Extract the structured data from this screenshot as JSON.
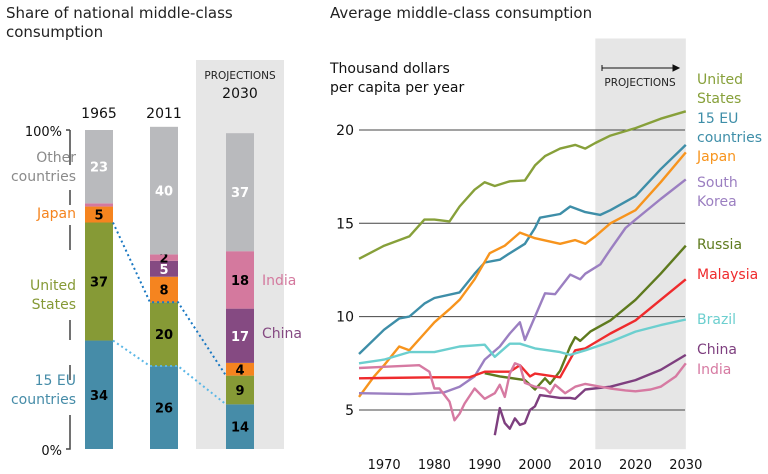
{
  "chart_data": [
    {
      "type": "bar",
      "stacked": true,
      "title": "Share of national middle-class consumption",
      "projection_label": "PROJECTIONS",
      "categories": [
        "1965",
        "2011",
        "2030"
      ],
      "projected_categories": [
        "2030"
      ],
      "yticks": [
        "100%",
        "0%"
      ],
      "ylim": [
        0,
        100
      ],
      "series": [
        {
          "name": "15 EU countries",
          "color": "#468ca8",
          "values": [
            34,
            26,
            14
          ],
          "label_color": "#000"
        },
        {
          "name": "United States",
          "color": "#869a36",
          "values": [
            37,
            20,
            9
          ],
          "label_color": "#000"
        },
        {
          "name": "Japan",
          "color": "#f5841f",
          "values": [
            5,
            8,
            4
          ],
          "label_color": "#000"
        },
        {
          "name": "China",
          "color": "#854a82",
          "values": [
            0,
            5,
            17
          ],
          "label_color": "#fff"
        },
        {
          "name": "India",
          "color": "#d4799e",
          "values": [
            1,
            2,
            18
          ],
          "label_color": "#000"
        },
        {
          "name": "Other countries",
          "color": "#b9babd",
          "values": [
            23,
            40,
            37
          ],
          "label_color": "#fff"
        }
      ],
      "data_labels": [
        [
          "34",
          "37",
          "5",
          "",
          "",
          "23"
        ],
        [
          "26",
          "20",
          "8",
          "5",
          "2",
          "40"
        ],
        [
          "14",
          "9",
          "4",
          "17",
          "18",
          "37"
        ]
      ]
    },
    {
      "type": "line",
      "title": "Average middle-class consumption",
      "ylabel": "Thousand dollars per capita per year",
      "projection_label": "PROJECTIONS",
      "projection_start": 2012,
      "xlim": [
        1965,
        2030
      ],
      "ylim": [
        2.9,
        24.9
      ],
      "xticks": [
        1970,
        1980,
        1990,
        2000,
        2010,
        2020,
        2030
      ],
      "yticks": [
        5,
        10,
        15,
        20
      ],
      "grid": "horizontal",
      "series": [
        {
          "name": "United States",
          "color": "#87a03a",
          "points": [
            [
              1965,
              13.1
            ],
            [
              1970,
              13.8
            ],
            [
              1975,
              14.3
            ],
            [
              1978,
              15.2
            ],
            [
              1980,
              15.2
            ],
            [
              1983,
              15.1
            ],
            [
              1985,
              15.9
            ],
            [
              1988,
              16.8
            ],
            [
              1990,
              17.2
            ],
            [
              1992,
              17.0
            ],
            [
              1995,
              17.25
            ],
            [
              1998,
              17.3
            ],
            [
              2000,
              18.1
            ],
            [
              2002,
              18.6
            ],
            [
              2005,
              19.0
            ],
            [
              2008,
              19.2
            ],
            [
              2010,
              19.0
            ],
            [
              2012,
              19.3
            ],
            [
              2015,
              19.7
            ],
            [
              2020,
              20.1
            ],
            [
              2025,
              20.6
            ],
            [
              2030,
              21.0
            ]
          ]
        },
        {
          "name": "15 EU countries",
          "color": "#3e8ea8",
          "points": [
            [
              1965,
              8.0
            ],
            [
              1970,
              9.3
            ],
            [
              1973,
              9.9
            ],
            [
              1975,
              10.0
            ],
            [
              1978,
              10.7
            ],
            [
              1980,
              11.0
            ],
            [
              1985,
              11.3
            ],
            [
              1988,
              12.3
            ],
            [
              1990,
              12.9
            ],
            [
              1993,
              13.05
            ],
            [
              1995,
              13.4
            ],
            [
              1998,
              13.9
            ],
            [
              2000,
              14.75
            ],
            [
              2001,
              15.3
            ],
            [
              2005,
              15.5
            ],
            [
              2007,
              15.9
            ],
            [
              2010,
              15.6
            ],
            [
              2013,
              15.45
            ],
            [
              2015,
              15.7
            ],
            [
              2020,
              16.45
            ],
            [
              2025,
              17.9
            ],
            [
              2030,
              19.2
            ]
          ]
        },
        {
          "name": "Japan",
          "color": "#f7941d",
          "points": [
            [
              1965,
              5.7
            ],
            [
              1968,
              6.8
            ],
            [
              1970,
              7.4
            ],
            [
              1973,
              8.4
            ],
            [
              1975,
              8.2
            ],
            [
              1978,
              9.1
            ],
            [
              1980,
              9.7
            ],
            [
              1983,
              10.4
            ],
            [
              1985,
              10.9
            ],
            [
              1988,
              12.0
            ],
            [
              1991,
              13.4
            ],
            [
              1994,
              13.8
            ],
            [
              1997,
              14.5
            ],
            [
              2000,
              14.2
            ],
            [
              2005,
              13.9
            ],
            [
              2008,
              14.1
            ],
            [
              2010,
              13.9
            ],
            [
              2012,
              14.3
            ],
            [
              2015,
              15.0
            ],
            [
              2020,
              15.7
            ],
            [
              2025,
              17.2
            ],
            [
              2030,
              18.8
            ]
          ]
        },
        {
          "name": "South Korea",
          "color": "#9b7fc1",
          "points": [
            [
              1965,
              5.9
            ],
            [
              1975,
              5.85
            ],
            [
              1982,
              5.95
            ],
            [
              1985,
              6.25
            ],
            [
              1988,
              6.8
            ],
            [
              1990,
              7.7
            ],
            [
              1993,
              8.4
            ],
            [
              1995,
              9.1
            ],
            [
              1997,
              9.7
            ],
            [
              1998,
              8.75
            ],
            [
              2000,
              10.0
            ],
            [
              2002,
              11.25
            ],
            [
              2004,
              11.2
            ],
            [
              2007,
              12.25
            ],
            [
              2009,
              12.0
            ],
            [
              2010,
              12.3
            ],
            [
              2013,
              12.8
            ],
            [
              2015,
              13.6
            ],
            [
              2018,
              14.75
            ],
            [
              2020,
              15.2
            ],
            [
              2025,
              16.3
            ],
            [
              2030,
              17.35
            ]
          ]
        },
        {
          "name": "Russia",
          "color": "#5e7a1e",
          "points": [
            [
              1990,
              6.97
            ],
            [
              1993,
              6.8
            ],
            [
              1998,
              6.6
            ],
            [
              2000,
              6.1
            ],
            [
              2002,
              6.7
            ],
            [
              2003,
              6.4
            ],
            [
              2005,
              7.1
            ],
            [
              2007,
              8.4
            ],
            [
              2008,
              8.9
            ],
            [
              2009,
              8.7
            ],
            [
              2011,
              9.2
            ],
            [
              2015,
              9.8
            ],
            [
              2020,
              10.9
            ],
            [
              2025,
              12.3
            ],
            [
              2030,
              13.8
            ]
          ]
        },
        {
          "name": "Malaysia",
          "color": "#ef2b2d",
          "points": [
            [
              1965,
              6.7
            ],
            [
              1980,
              6.75
            ],
            [
              1987,
              6.75
            ],
            [
              1990,
              7.05
            ],
            [
              1995,
              7.05
            ],
            [
              1997,
              7.4
            ],
            [
              1999,
              6.8
            ],
            [
              2000,
              6.95
            ],
            [
              2005,
              6.75
            ],
            [
              2008,
              8.2
            ],
            [
              2010,
              8.3
            ],
            [
              2015,
              9.1
            ],
            [
              2020,
              9.8
            ],
            [
              2025,
              10.9
            ],
            [
              2030,
              12.0
            ]
          ]
        },
        {
          "name": "Brazil",
          "color": "#6ccfcf",
          "points": [
            [
              1965,
              7.5
            ],
            [
              1970,
              7.7
            ],
            [
              1975,
              8.1
            ],
            [
              1980,
              8.1
            ],
            [
              1985,
              8.4
            ],
            [
              1990,
              8.5
            ],
            [
              1992,
              7.85
            ],
            [
              1995,
              8.55
            ],
            [
              1997,
              8.55
            ],
            [
              2000,
              8.3
            ],
            [
              2005,
              8.1
            ],
            [
              2007,
              7.95
            ],
            [
              2010,
              8.2
            ],
            [
              2015,
              8.65
            ],
            [
              2020,
              9.2
            ],
            [
              2025,
              9.55
            ],
            [
              2030,
              9.85
            ]
          ]
        },
        {
          "name": "China",
          "color": "#7e3f7f",
          "points": [
            [
              1992,
              3.65
            ],
            [
              1993,
              5.1
            ],
            [
              1994,
              4.3
            ],
            [
              1995,
              4.0
            ],
            [
              1996,
              4.55
            ],
            [
              1997,
              4.2
            ],
            [
              1998,
              4.3
            ],
            [
              1999,
              5.0
            ],
            [
              2000,
              5.2
            ],
            [
              2001,
              5.8
            ],
            [
              2005,
              5.65
            ],
            [
              2007,
              5.65
            ],
            [
              2008,
              5.6
            ],
            [
              2010,
              6.1
            ],
            [
              2015,
              6.25
            ],
            [
              2020,
              6.6
            ],
            [
              2025,
              7.15
            ],
            [
              2030,
              7.95
            ]
          ]
        },
        {
          "name": "India",
          "color": "#d67aa2",
          "points": [
            [
              1965,
              7.25
            ],
            [
              1977,
              7.4
            ],
            [
              1979,
              7.05
            ],
            [
              1980,
              6.15
            ],
            [
              1981,
              6.15
            ],
            [
              1983,
              5.45
            ],
            [
              1984,
              4.45
            ],
            [
              1985,
              4.8
            ],
            [
              1986,
              5.35
            ],
            [
              1988,
              6.15
            ],
            [
              1990,
              5.6
            ],
            [
              1992,
              5.9
            ],
            [
              1993,
              6.35
            ],
            [
              1994,
              5.7
            ],
            [
              1995,
              6.95
            ],
            [
              1996,
              7.5
            ],
            [
              1997,
              7.4
            ],
            [
              1998,
              6.45
            ],
            [
              2000,
              6.25
            ],
            [
              2002,
              6.15
            ],
            [
              2003,
              5.9
            ],
            [
              2004,
              6.35
            ],
            [
              2006,
              5.9
            ],
            [
              2008,
              6.25
            ],
            [
              2010,
              6.4
            ],
            [
              2015,
              6.15
            ],
            [
              2018,
              6.05
            ],
            [
              2020,
              6.0
            ],
            [
              2023,
              6.1
            ],
            [
              2025,
              6.25
            ],
            [
              2028,
              6.8
            ],
            [
              2030,
              7.5
            ]
          ]
        }
      ]
    }
  ]
}
